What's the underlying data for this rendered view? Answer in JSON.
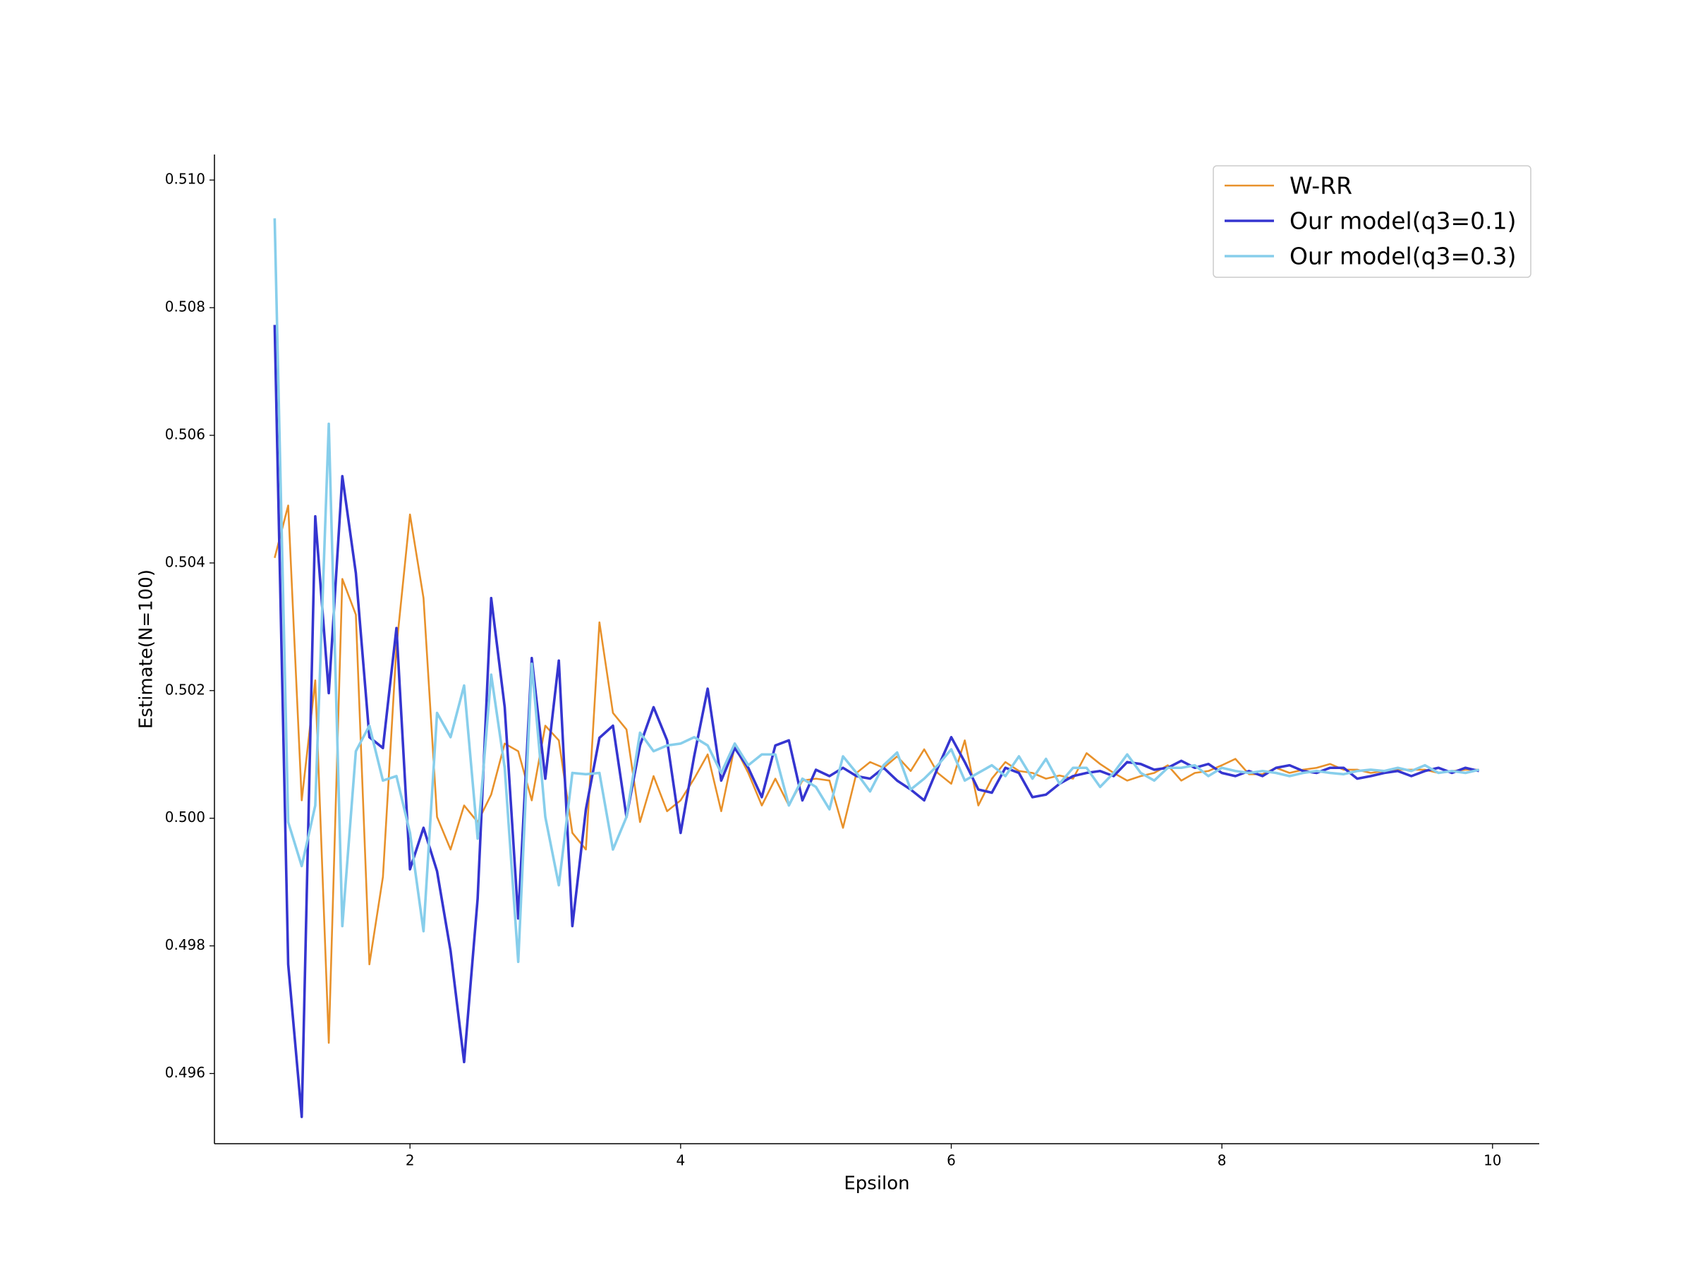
{
  "chart_data": {
    "type": "line",
    "xlabel": "Epsilon",
    "ylabel": "Estimate(N=100)",
    "x": [
      1.0,
      1.1,
      1.2,
      1.3,
      1.4,
      1.5,
      1.6,
      1.7,
      1.8,
      1.9,
      2.0,
      2.1,
      2.2,
      2.3,
      2.4,
      2.5,
      2.6,
      2.7,
      2.8,
      2.9,
      3.0,
      3.1,
      3.2,
      3.3,
      3.4,
      3.5,
      3.6,
      3.7,
      3.8,
      3.9,
      4.0,
      4.1,
      4.2,
      4.3,
      4.4,
      4.5,
      4.6,
      4.7,
      4.8,
      4.9,
      5.0,
      5.1,
      5.2,
      5.3,
      5.4,
      5.5,
      5.6,
      5.7,
      5.8,
      5.9,
      6.0,
      6.1,
      6.2,
      6.3,
      6.4,
      6.5,
      6.6,
      6.7,
      6.8,
      6.9,
      7.0,
      7.1,
      7.2,
      7.3,
      7.4,
      7.5,
      7.6,
      7.7,
      7.8,
      7.9,
      8.0,
      8.1,
      8.2,
      8.3,
      8.4,
      8.5,
      8.6,
      8.7,
      8.8,
      8.9,
      9.0,
      9.1,
      9.2,
      9.3,
      9.4,
      9.5,
      9.6,
      9.7,
      9.8,
      9.9
    ],
    "series": [
      {
        "name": "W-RR",
        "color": "#e8912a",
        "values": [
          0.50408,
          0.5049,
          0.50028,
          0.50216,
          0.49648,
          0.50375,
          0.50319,
          0.49771,
          0.49908,
          0.50268,
          0.50476,
          0.50345,
          0.50002,
          0.49951,
          0.5002,
          0.49994,
          0.50037,
          0.50117,
          0.50105,
          0.50028,
          0.50145,
          0.50122,
          0.49977,
          0.49951,
          0.50307,
          0.50165,
          0.50139,
          0.49994,
          0.50066,
          0.50011,
          0.50028,
          0.50062,
          0.501,
          0.50011,
          0.50113,
          0.50071,
          0.5002,
          0.50062,
          0.5002,
          0.50059,
          0.50062,
          0.50059,
          0.49985,
          0.50071,
          0.50088,
          0.50079,
          0.50097,
          0.50074,
          0.50108,
          0.50071,
          0.50054,
          0.50122,
          0.5002,
          0.50062,
          0.50088,
          0.50074,
          0.50071,
          0.50062,
          0.50067,
          0.50062,
          0.50102,
          0.50085,
          0.50071,
          0.50059,
          0.50066,
          0.50071,
          0.50083,
          0.50059,
          0.50071,
          0.50074,
          0.50083,
          0.50093,
          0.50069,
          0.50069,
          0.50079,
          0.50071,
          0.50076,
          0.50079,
          0.50085,
          0.50076,
          0.50076,
          0.50071,
          0.50074,
          0.50076,
          0.50076,
          0.50076,
          0.50071,
          0.50074,
          0.50076,
          0.50076
        ]
      },
      {
        "name": "Our model(q3=0.1)",
        "color": "#3535d0",
        "values": [
          0.50773,
          0.49771,
          0.49532,
          0.50473,
          0.50196,
          0.50536,
          0.50384,
          0.50127,
          0.5011,
          0.50298,
          0.4992,
          0.49985,
          0.49917,
          0.49792,
          0.49618,
          0.49874,
          0.50345,
          0.50174,
          0.49843,
          0.50251,
          0.50062,
          0.50247,
          0.49831,
          0.50014,
          0.50126,
          0.50145,
          0.50002,
          0.50114,
          0.50174,
          0.50122,
          0.49977,
          0.50097,
          0.50203,
          0.50059,
          0.5011,
          0.50079,
          0.50033,
          0.50114,
          0.50122,
          0.50028,
          0.50076,
          0.50066,
          0.50079,
          0.50066,
          0.50062,
          0.50079,
          0.50059,
          0.50045,
          0.50028,
          0.50079,
          0.50127,
          0.50088,
          0.50045,
          0.5004,
          0.50079,
          0.50071,
          0.50033,
          0.50037,
          0.50054,
          0.50066,
          0.50071,
          0.50074,
          0.50066,
          0.50088,
          0.50085,
          0.50076,
          0.50079,
          0.5009,
          0.50079,
          0.50085,
          0.50071,
          0.50066,
          0.50074,
          0.50066,
          0.50079,
          0.50083,
          0.50074,
          0.50071,
          0.50079,
          0.50079,
          0.50062,
          0.50066,
          0.50071,
          0.50074,
          0.50066,
          0.50074,
          0.50079,
          0.50071,
          0.50079,
          0.50074
        ]
      },
      {
        "name": "Our model(q3=0.3)",
        "color": "#87ceeb",
        "values": [
          0.5094,
          0.49994,
          0.49925,
          0.5002,
          0.50618,
          0.49831,
          0.50105,
          0.50145,
          0.50059,
          0.50066,
          0.49977,
          0.49823,
          0.50165,
          0.50127,
          0.50208,
          0.49968,
          0.50225,
          0.50079,
          0.49775,
          0.50242,
          0.50002,
          0.49895,
          0.50071,
          0.50069,
          0.50071,
          0.49951,
          0.50002,
          0.50134,
          0.50105,
          0.50114,
          0.50117,
          0.50127,
          0.50114,
          0.50071,
          0.50117,
          0.50083,
          0.501,
          0.501,
          0.5002,
          0.50062,
          0.50049,
          0.50014,
          0.50097,
          0.50071,
          0.50042,
          0.50083,
          0.50103,
          0.50045,
          0.50062,
          0.50083,
          0.50108,
          0.50059,
          0.50071,
          0.50083,
          0.50066,
          0.50097,
          0.50062,
          0.50093,
          0.50054,
          0.50079,
          0.50079,
          0.50049,
          0.50071,
          0.501,
          0.50071,
          0.50059,
          0.50079,
          0.50079,
          0.50083,
          0.50066,
          0.50079,
          0.50074,
          0.50071,
          0.50074,
          0.50071,
          0.50066,
          0.50071,
          0.50074,
          0.50071,
          0.50069,
          0.50074,
          0.50076,
          0.50074,
          0.50079,
          0.50074,
          0.50083,
          0.50071,
          0.50074,
          0.50071,
          0.50076
        ]
      }
    ],
    "xlim": [
      0.555,
      10.345
    ],
    "xticks": [
      2,
      4,
      6,
      8,
      10
    ],
    "ylim": [
      0.4949,
      0.5104
    ],
    "yticks": [
      {
        "value": 0.496,
        "label": "0.496"
      },
      {
        "value": 0.498,
        "label": "0.498"
      },
      {
        "value": 0.5,
        "label": "0.500"
      },
      {
        "value": 0.502,
        "label": "0.502"
      },
      {
        "value": 0.504,
        "label": "0.504"
      },
      {
        "value": 0.506,
        "label": "0.506"
      },
      {
        "value": 0.508,
        "label": "0.508"
      },
      {
        "value": 0.51,
        "label": "0.510"
      }
    ],
    "legend": "upper right"
  }
}
